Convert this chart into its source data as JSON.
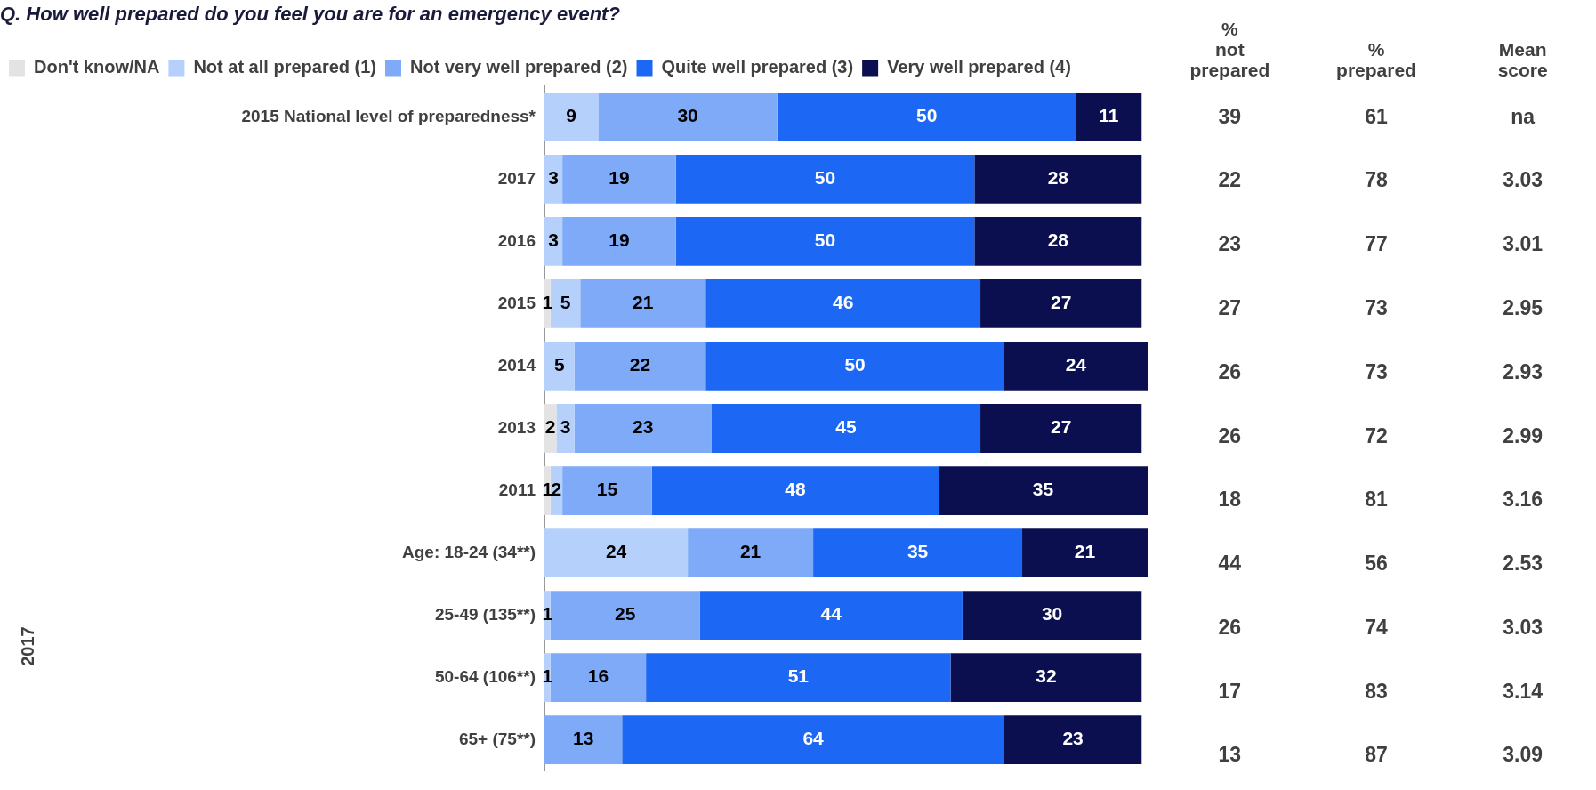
{
  "chart_data": [
    {
      "type": "bar",
      "orientation": "horizontal",
      "stacked": true,
      "title": "Q. How well prepared do you feel you are for an emergency event?",
      "categories": [
        "2015 National level of preparedness*",
        "2017",
        "2016",
        "2015",
        "2014",
        "2013",
        "2011",
        "Age: 18-24 (34**)",
        "25-49 (135**)",
        "50-64 (106**)",
        "65+ (75**)"
      ],
      "series": [
        {
          "name": "Don't know/NA",
          "color": "#e3e3e3",
          "values": [
            null,
            null,
            null,
            1,
            null,
            2,
            1,
            null,
            null,
            null,
            null
          ]
        },
        {
          "name": "Not at all prepared (1)",
          "color": "#b4d0fb",
          "values": [
            9,
            3,
            3,
            5,
            5,
            3,
            2,
            24,
            1,
            1,
            null
          ]
        },
        {
          "name": "Not very well prepared (2)",
          "color": "#7eaaf7",
          "values": [
            30,
            19,
            19,
            21,
            22,
            23,
            15,
            21,
            25,
            16,
            13
          ]
        },
        {
          "name": "Quite well prepared (3)",
          "color": "#1c68f4",
          "values": [
            50,
            50,
            50,
            46,
            50,
            45,
            48,
            35,
            44,
            51,
            64
          ]
        },
        {
          "name": "Very well prepared (4)",
          "color": "#0b0f4f",
          "values": [
            11,
            28,
            28,
            27,
            24,
            27,
            35,
            21,
            30,
            32,
            23
          ]
        }
      ],
      "xlim": [
        0,
        101
      ],
      "data_labels": true,
      "legend": "top left",
      "tick_labels": "y",
      "annotations": [
        "2017"
      ]
    },
    {
      "type": "other",
      "annotations": [
        "% not prepared",
        "% prepared",
        "Mean score",
        "39",
        "61",
        "na",
        "22",
        "78",
        "3.03",
        "23",
        "77",
        "3.01",
        "27",
        "73",
        "2.95",
        "26",
        "73",
        "2.93",
        "26",
        "72",
        "2.99",
        "18",
        "81",
        "3.16",
        "44",
        "56",
        "2.53",
        "26",
        "74",
        "3.03",
        "17",
        "83",
        "3.14",
        "13",
        "87",
        "3.09"
      ]
    }
  ]
}
